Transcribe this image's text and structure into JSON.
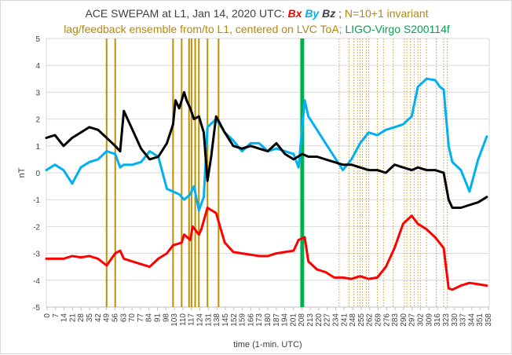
{
  "chart_data": {
    "type": "line",
    "title_parts": {
      "prefix": "ACE SWEPAM at L1, Jan 14, 2020 UTC: ",
      "bx": "Bx",
      "by": "By",
      "bz": "Bz",
      "sep": " ; ",
      "invariant": "N=10+1 invariant",
      "line2_gold": "lag/feedback ensemble from/to  L1, centered on LVC ToA; ",
      "line2_green": "LIGO-Virgo S200114f"
    },
    "xlabel": "time (1-min. UTC)",
    "ylabel": "nT",
    "xlim": [
      0,
      360
    ],
    "ylim": [
      -5,
      5
    ],
    "x_tick_labels": [
      "0",
      "7",
      "14",
      "21",
      "28",
      "35",
      "42",
      "49",
      "56",
      "63",
      "70",
      "77",
      "84",
      "91",
      "98",
      "103",
      "110",
      "117",
      "124",
      "131",
      "138",
      "145",
      "152",
      "159",
      "166",
      "173",
      "180",
      "187",
      "194",
      "201",
      "208",
      "213",
      "220",
      "227",
      "234",
      "241",
      "248",
      "255",
      "262",
      "269",
      "276",
      "283",
      "290",
      "297",
      "302",
      "309",
      "316",
      "323",
      "330",
      "337",
      "344",
      "351",
      "358"
    ],
    "y_tick_labels": [
      "-5",
      "-4",
      "-3",
      "-2",
      "-1",
      "0",
      "1",
      "2",
      "3",
      "4",
      "5"
    ],
    "colors": {
      "bx": "#ff0000",
      "by": "#00b0f0",
      "bz": "#000000",
      "ensemble": "#bf9000",
      "lvc": "#00b050"
    },
    "lvc_toa_x": 208,
    "gold_solid_x": [
      49,
      56,
      103,
      110,
      116,
      118,
      121,
      124,
      131,
      140
    ],
    "gold_dotted_x": [
      238,
      246,
      250,
      253,
      255,
      257,
      260,
      262,
      269,
      274,
      282,
      291,
      293,
      296,
      299,
      302,
      304,
      309,
      317,
      323,
      326
    ],
    "series": [
      {
        "name": "Bx",
        "x": [
          0,
          7,
          14,
          21,
          28,
          35,
          42,
          49,
          56,
          60,
          63,
          70,
          77,
          84,
          91,
          98,
          103,
          110,
          112,
          117,
          119,
          124,
          126,
          131,
          138,
          145,
          152,
          159,
          166,
          173,
          180,
          187,
          194,
          201,
          205,
          210,
          213,
          220,
          227,
          234,
          241,
          248,
          255,
          262,
          269,
          276,
          283,
          290,
          297,
          302,
          309,
          316,
          323,
          327,
          330,
          337,
          344,
          351,
          358
        ],
        "values": [
          -3.2,
          -3.2,
          -3.2,
          -3.1,
          -3.15,
          -3.1,
          -3.2,
          -3.45,
          -3.0,
          -2.9,
          -3.2,
          -3.3,
          -3.4,
          -3.5,
          -3.2,
          -3.0,
          -2.7,
          -2.6,
          -2.3,
          -2.5,
          -2.0,
          -2.3,
          -2.1,
          -1.3,
          -1.5,
          -2.6,
          -2.95,
          -3.0,
          -3.05,
          -3.1,
          -3.1,
          -3.0,
          -2.95,
          -2.9,
          -2.5,
          -2.4,
          -3.3,
          -3.6,
          -3.7,
          -3.9,
          -3.9,
          -3.95,
          -3.85,
          -3.95,
          -3.9,
          -3.5,
          -2.8,
          -1.9,
          -1.6,
          -1.9,
          -2.1,
          -2.4,
          -2.8,
          -4.3,
          -4.35,
          -4.2,
          -4.1,
          -4.15,
          -4.2
        ]
      },
      {
        "name": "By",
        "x": [
          0,
          7,
          14,
          21,
          28,
          35,
          42,
          49,
          56,
          60,
          63,
          70,
          77,
          84,
          91,
          98,
          103,
          108,
          112,
          117,
          120,
          124,
          128,
          131,
          138,
          145,
          152,
          159,
          166,
          173,
          180,
          187,
          194,
          201,
          205,
          210,
          213,
          220,
          227,
          234,
          241,
          248,
          255,
          262,
          269,
          276,
          283,
          290,
          297,
          302,
          309,
          316,
          320,
          323,
          327,
          330,
          337,
          344,
          351,
          358
        ],
        "values": [
          0.1,
          0.3,
          0.1,
          -0.4,
          0.2,
          0.4,
          0.5,
          0.8,
          0.7,
          0.2,
          0.3,
          0.3,
          0.4,
          0.8,
          0.6,
          -0.6,
          -0.7,
          -0.8,
          -1.0,
          -0.8,
          -0.5,
          -1.4,
          -0.9,
          1.7,
          2.0,
          1.5,
          1.2,
          0.8,
          1.1,
          1.1,
          0.8,
          0.9,
          0.8,
          0.7,
          0.2,
          2.7,
          2.1,
          1.6,
          1.1,
          0.6,
          0.1,
          0.5,
          1.1,
          1.5,
          1.4,
          1.6,
          1.7,
          1.8,
          2.1,
          3.2,
          3.5,
          3.45,
          3.2,
          3.1,
          1.0,
          0.4,
          0.1,
          -0.7,
          0.5,
          1.35
        ]
      },
      {
        "name": "Bz",
        "x": [
          0,
          7,
          14,
          21,
          28,
          35,
          42,
          49,
          56,
          60,
          63,
          70,
          77,
          84,
          91,
          98,
          103,
          105,
          108,
          112,
          114,
          117,
          120,
          124,
          128,
          131,
          134,
          138,
          145,
          152,
          159,
          166,
          173,
          180,
          187,
          194,
          201,
          208,
          213,
          220,
          227,
          234,
          241,
          248,
          255,
          262,
          269,
          276,
          283,
          290,
          297,
          302,
          309,
          316,
          323,
          327,
          330,
          337,
          344,
          351,
          358
        ],
        "values": [
          1.3,
          1.4,
          1.0,
          1.3,
          1.5,
          1.7,
          1.6,
          1.3,
          1.0,
          0.8,
          2.3,
          1.6,
          0.9,
          0.5,
          0.6,
          1.1,
          1.8,
          2.7,
          2.4,
          3.0,
          2.7,
          2.4,
          2.0,
          2.1,
          1.5,
          -0.3,
          0.6,
          2.1,
          1.5,
          1.0,
          0.9,
          1.0,
          0.9,
          0.8,
          1.1,
          0.7,
          0.5,
          0.7,
          0.6,
          0.6,
          0.5,
          0.4,
          0.3,
          0.3,
          0.2,
          0.1,
          0.1,
          0.0,
          0.3,
          0.2,
          0.1,
          0.2,
          0.1,
          0.1,
          0.0,
          -1.0,
          -1.3,
          -1.3,
          -1.2,
          -1.1,
          -0.9
        ]
      }
    ]
  }
}
